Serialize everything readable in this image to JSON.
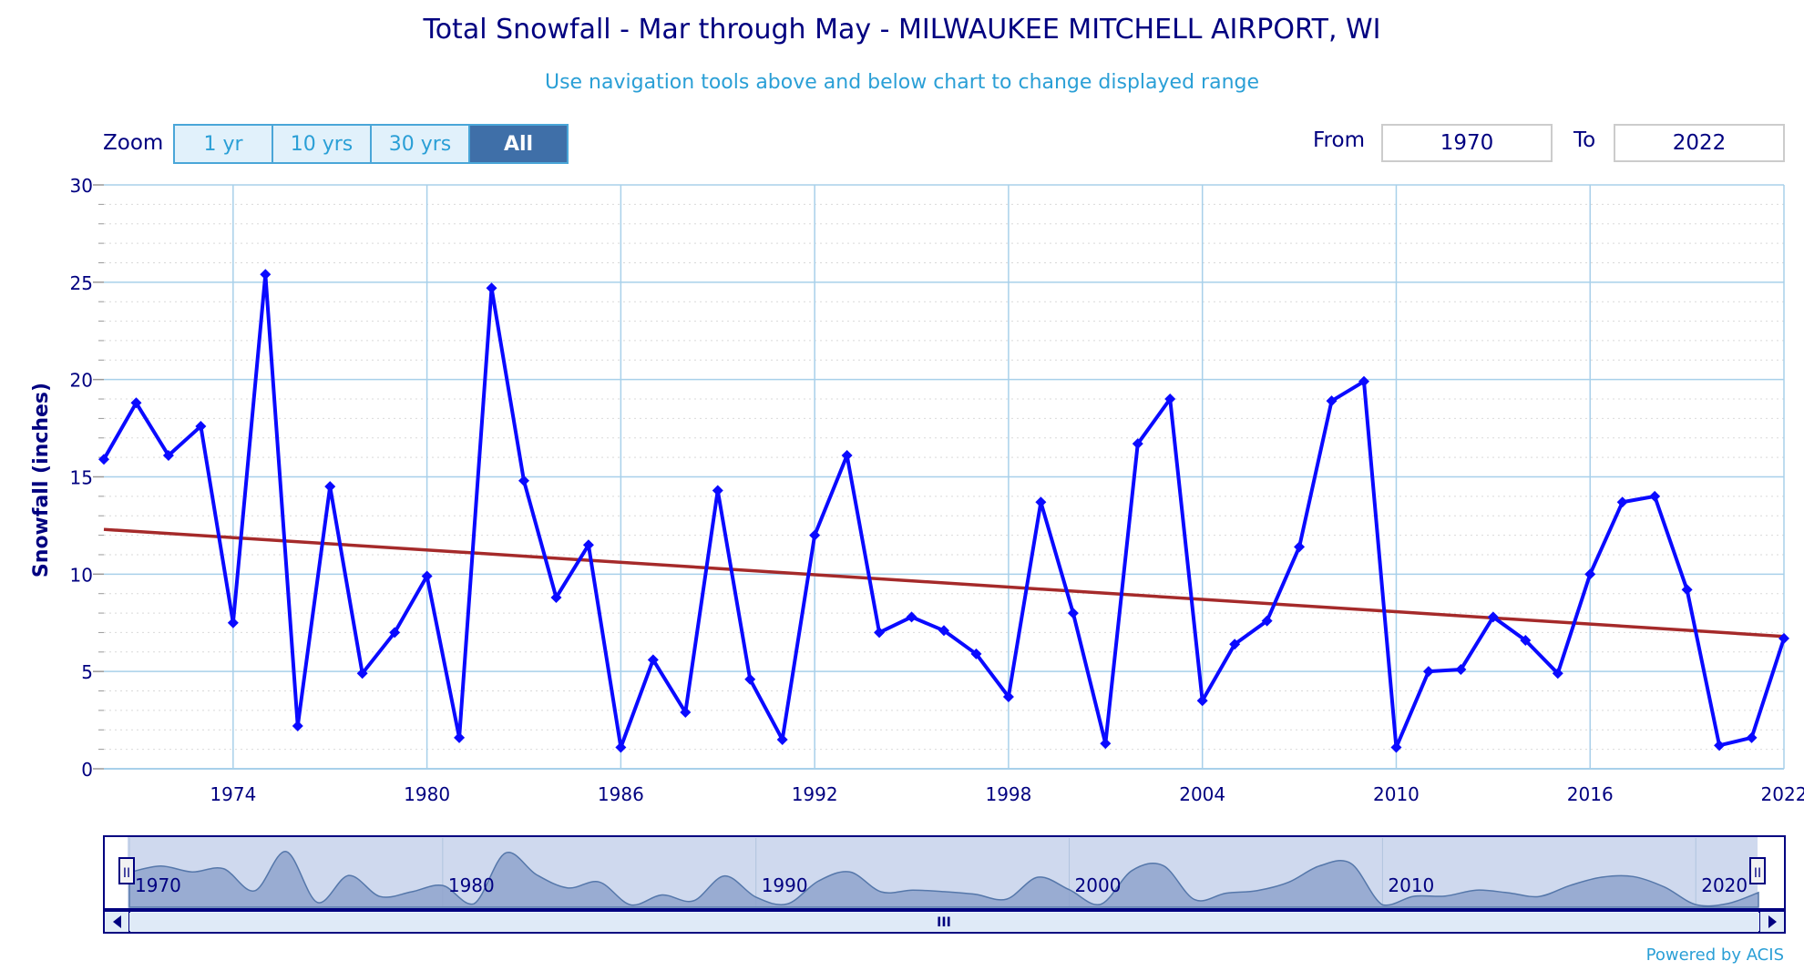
{
  "title": "Total Snowfall - Mar through May - MILWAUKEE MITCHELL AIRPORT, WI",
  "subtitle": "Use navigation tools above and below chart to change displayed range",
  "zoom": {
    "label": "Zoom",
    "buttons": [
      "1 yr",
      "10 yrs",
      "30 yrs",
      "All"
    ],
    "active": "All"
  },
  "range": {
    "from_label": "From",
    "from_value": "1970",
    "to_label": "To",
    "to_value": "2022"
  },
  "credit": "Powered by ACIS",
  "navigator": {
    "labels": [
      "1970",
      "1980",
      "1990",
      "2000",
      "2010",
      "2020"
    ],
    "handle_icon": "II",
    "scrollbar_grip": "III"
  },
  "colors": {
    "title": "#000080",
    "subtitle": "#2a9fd6",
    "series": "#0a0aff",
    "trend": "#a52a2a",
    "grid": "#a8d0ea",
    "navigator_fill": "#8fa3cc"
  },
  "chart_data": {
    "type": "line",
    "ylabel": "Snowfall (inches)",
    "xlabel": "",
    "xlim": [
      1970,
      2022
    ],
    "ylim": [
      0,
      30
    ],
    "xticks": [
      1974,
      1980,
      1986,
      1992,
      1998,
      2004,
      2010,
      2016,
      2022
    ],
    "yticks": [
      0,
      5,
      10,
      15,
      20,
      25,
      30
    ],
    "grid": true,
    "x": [
      1970,
      1971,
      1972,
      1973,
      1974,
      1975,
      1976,
      1977,
      1978,
      1979,
      1980,
      1981,
      1982,
      1983,
      1984,
      1985,
      1986,
      1987,
      1988,
      1989,
      1990,
      1991,
      1992,
      1993,
      1994,
      1995,
      1996,
      1997,
      1998,
      1999,
      2000,
      2001,
      2002,
      2003,
      2004,
      2005,
      2006,
      2007,
      2008,
      2009,
      2010,
      2011,
      2012,
      2013,
      2014,
      2015,
      2016,
      2017,
      2018,
      2019,
      2020,
      2021,
      2022
    ],
    "series": [
      {
        "values": [
          15.9,
          18.8,
          16.1,
          17.6,
          7.5,
          25.4,
          2.2,
          14.5,
          4.9,
          7.0,
          9.9,
          1.6,
          24.7,
          14.8,
          8.8,
          11.5,
          1.1,
          5.6,
          2.9,
          14.3,
          4.6,
          1.5,
          12.0,
          16.1,
          7.0,
          7.8,
          7.1,
          5.9,
          3.7,
          13.7,
          8.0,
          1.3,
          16.7,
          19.0,
          3.5,
          6.4,
          7.6,
          11.4,
          18.9,
          19.9,
          1.1,
          5.0,
          5.1,
          7.8,
          6.6,
          4.9,
          10.0,
          13.7,
          14.0,
          9.2,
          1.2,
          1.6,
          6.7
        ]
      }
    ],
    "trend": {
      "start": [
        1970,
        12.3
      ],
      "end": [
        2022,
        6.8
      ]
    }
  }
}
